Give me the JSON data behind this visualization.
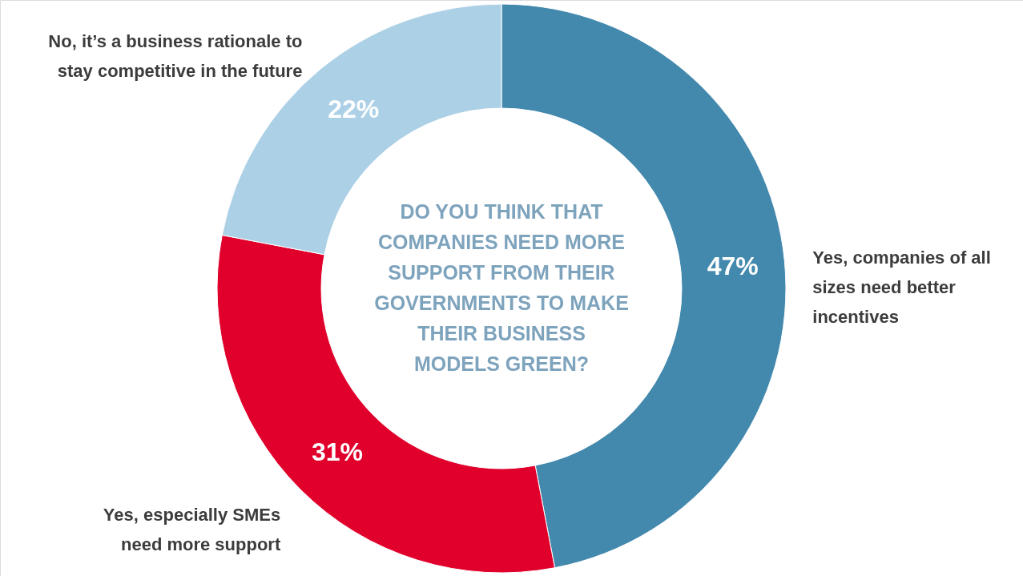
{
  "chart_data": {
    "type": "donut",
    "title": "DO YOU THINK THAT COMPANIES NEED MORE SUPPORT FROM THEIR GOVERNMENTS TO MAKE THEIR BUSINESS MODELS GREEN?",
    "categories": [
      "Yes, companies of all sizes need better incentives",
      "Yes, especially SMEs need more support",
      "No, it’s a business rationale to stay competitive in the future"
    ],
    "values": [
      47,
      31,
      22
    ],
    "colors": [
      "#4389ad",
      "#e0002b",
      "#acd0e6"
    ],
    "value_labels": [
      "47%",
      "31%",
      "22%"
    ]
  }
}
